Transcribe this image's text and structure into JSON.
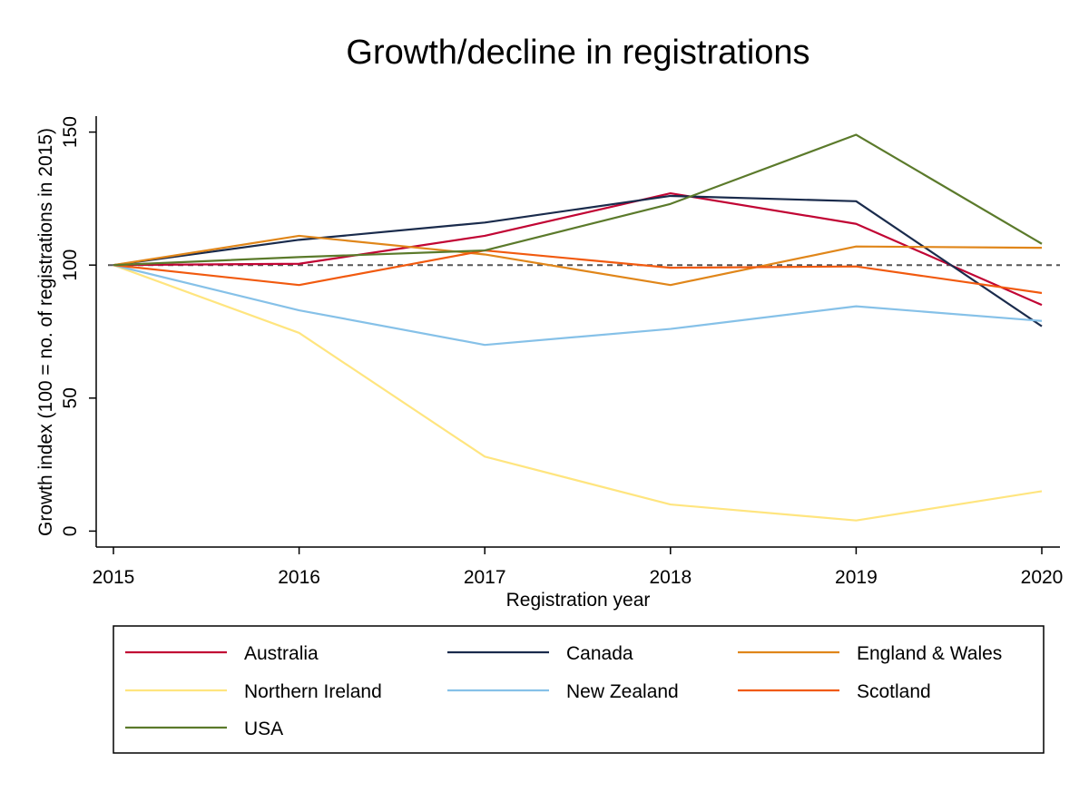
{
  "chart_data": {
    "type": "line",
    "title": "Growth/decline in registrations",
    "xlabel": "Registration year",
    "ylabel": "Growth index (100 = no. of registrations in 2015)",
    "x": [
      2015,
      2016,
      2017,
      2018,
      2019,
      2020
    ],
    "xticks": [
      "2015",
      "2016",
      "2017",
      "2018",
      "2019",
      "2020"
    ],
    "yticks": [
      "0",
      "50",
      "100",
      "150"
    ],
    "ylim": [
      -6,
      156
    ],
    "xlim": [
      2015,
      2020
    ],
    "reference_line": {
      "y": 100,
      "style": "dashed",
      "color": "#555555"
    },
    "grid": false,
    "legend_position": "bottom",
    "series": [
      {
        "name": "Australia",
        "color": "#c10534",
        "values": [
          100,
          100.5,
          111,
          127,
          115.5,
          85
        ]
      },
      {
        "name": "Canada",
        "color": "#1a2b4c",
        "values": [
          100,
          109.5,
          116,
          126,
          124,
          77
        ]
      },
      {
        "name": "England & Wales",
        "color": "#e0861a",
        "values": [
          100,
          111,
          104,
          92.5,
          107,
          106.5
        ]
      },
      {
        "name": "Northern Ireland",
        "color": "#ffe57f",
        "values": [
          100,
          74.5,
          28,
          10,
          4,
          15
        ]
      },
      {
        "name": "New Zealand",
        "color": "#86c1e8",
        "values": [
          100,
          83,
          70,
          76,
          84.5,
          79
        ]
      },
      {
        "name": "Scotland",
        "color": "#f15a0f",
        "values": [
          100,
          92.5,
          105.5,
          99,
          99.5,
          89.5
        ]
      },
      {
        "name": "USA",
        "color": "#5b7a2b",
        "values": [
          100,
          103,
          105.5,
          123,
          149,
          108
        ]
      }
    ]
  }
}
